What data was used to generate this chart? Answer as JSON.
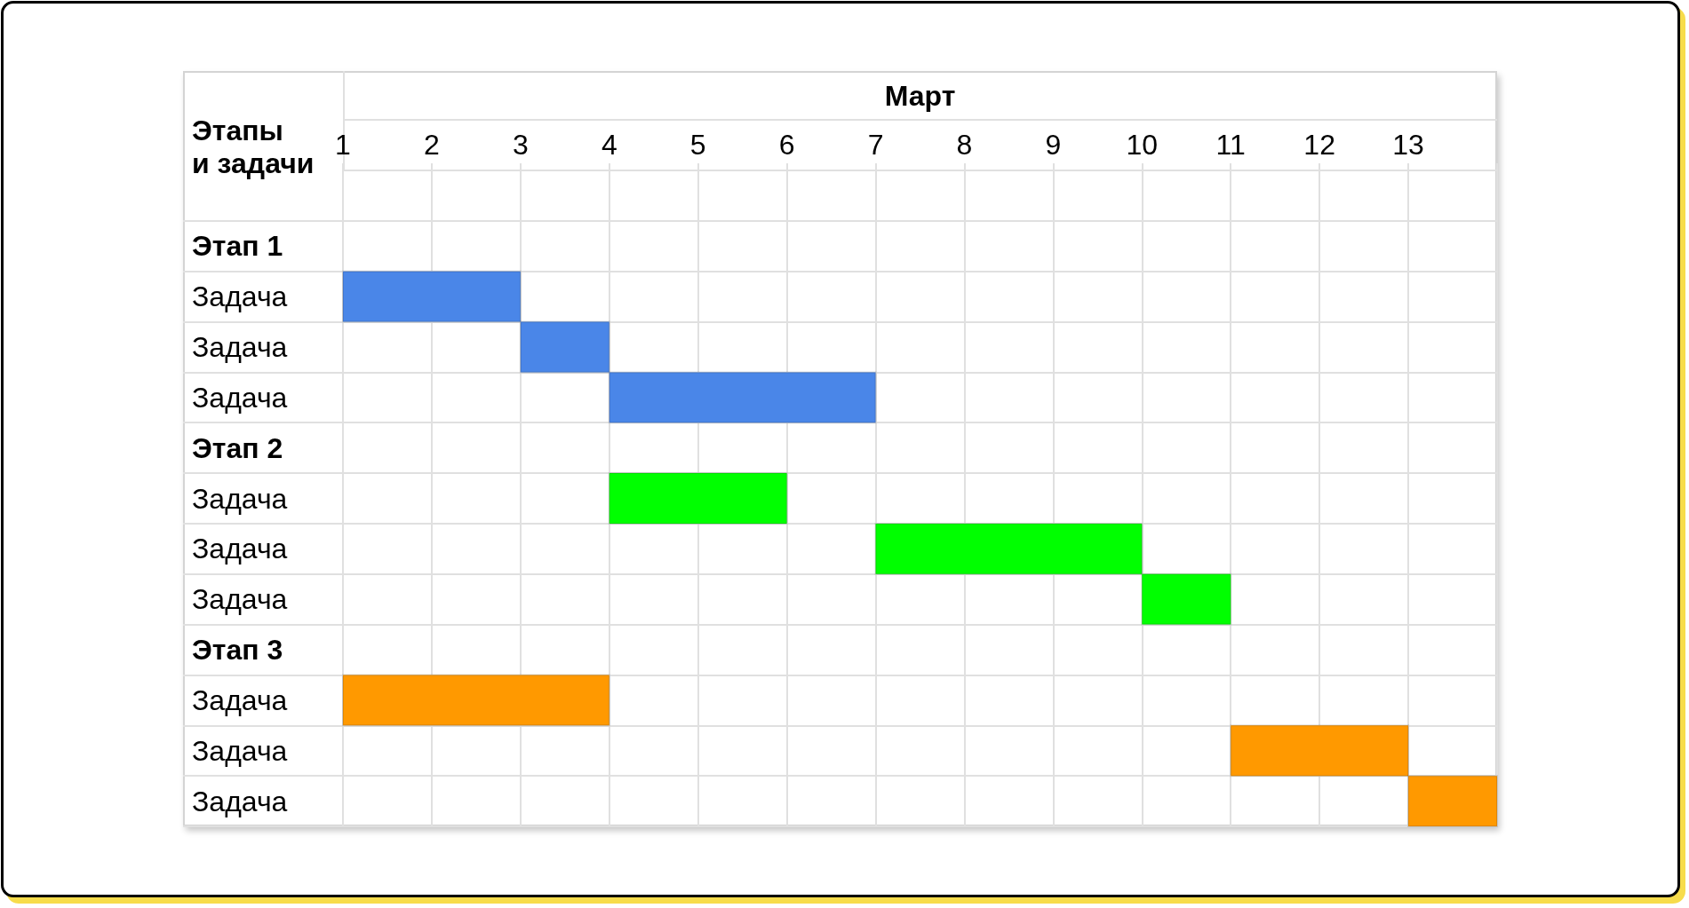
{
  "chart_data": {
    "type": "bar",
    "orientation": "horizontal",
    "xlabel": "Март",
    "ylabel": "Этапы и задачи",
    "categories": [
      null,
      "Этап 1",
      "Задача",
      "Задача",
      "Задача",
      "Этап 2",
      "Задача",
      "Задача",
      "Задача",
      "Этап 3",
      "Задача",
      "Задача",
      "Задача"
    ],
    "base": [
      null,
      null,
      1,
      3,
      4,
      null,
      4,
      7,
      10,
      null,
      1,
      11,
      13
    ],
    "values": [
      null,
      null,
      2,
      1,
      3,
      null,
      2,
      3,
      1,
      null,
      3,
      2,
      1
    ],
    "colors": [
      null,
      null,
      "#4a86e8",
      "#4a86e8",
      "#4a86e8",
      null,
      "#00ff00",
      "#00ff00",
      "#00ff00",
      null,
      "#ff9900",
      "#ff9900",
      "#ff9900"
    ],
    "xlim": [
      1,
      14
    ],
    "xticks": [
      1,
      2,
      3,
      4,
      5,
      6,
      7,
      8,
      9,
      10,
      11,
      12,
      13,
      {
        "value": 14,
        "label": null
      }
    ],
    "grid": true
  }
}
